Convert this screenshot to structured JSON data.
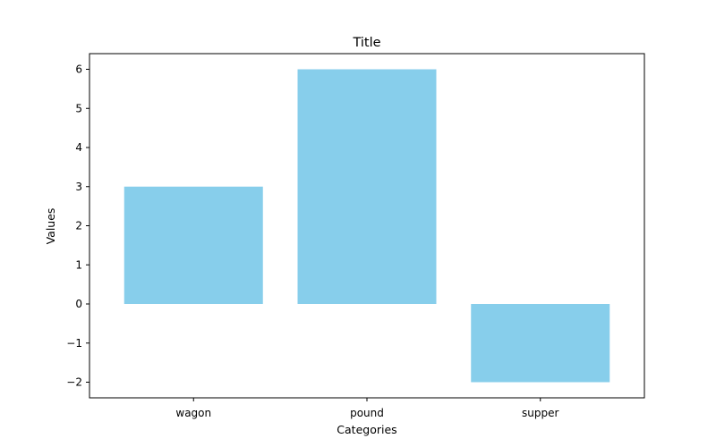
{
  "chart_data": {
    "type": "bar",
    "title": "Title",
    "xlabel": "Categories",
    "ylabel": "Values",
    "categories": [
      "wagon",
      "pound",
      "supper"
    ],
    "values": [
      3,
      6,
      -2
    ],
    "ylim": [
      -2.4,
      6.4
    ],
    "yticks": [
      -2,
      -1,
      0,
      1,
      2,
      3,
      4,
      5,
      6
    ],
    "ytick_labels": [
      "−2",
      "−1",
      "0",
      "1",
      "2",
      "3",
      "4",
      "5",
      "6"
    ],
    "bar_color": "#87ceeb",
    "grid": false,
    "legend": "none"
  }
}
